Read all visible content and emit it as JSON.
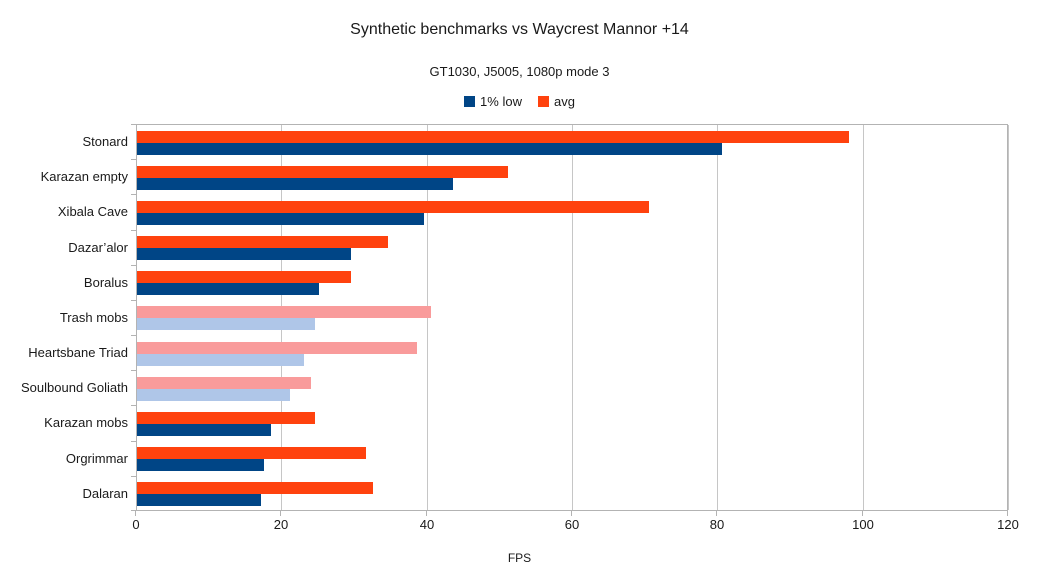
{
  "chart_data": {
    "type": "bar",
    "orientation": "horizontal",
    "title": "Synthetic benchmarks vs Waycrest Mannor +14",
    "subtitle": "GT1030, J5005, 1080p mode 3",
    "xlabel": "FPS",
    "xlim": [
      0,
      120
    ],
    "xticks": [
      0,
      20,
      40,
      60,
      80,
      100,
      120
    ],
    "grid": "vertical",
    "legend_position": "top-center",
    "legend": [
      {
        "name": "1% low",
        "color": "#004586"
      },
      {
        "name": "avg",
        "color": "#FF420E"
      }
    ],
    "categories": [
      "Stonard",
      "Karazan empty",
      "Xibala Cave",
      "Dazar’alor",
      "Boralus",
      "Trash mobs",
      "Heartsbane Triad",
      "Soulbound Goliath",
      "Karazan mobs",
      "Orgrimmar",
      "Dalaran"
    ],
    "series": [
      {
        "name": "1% low",
        "values": [
          80.5,
          43.5,
          39.5,
          29.5,
          25,
          24.5,
          23,
          21,
          18.5,
          17.5,
          17
        ]
      },
      {
        "name": "avg",
        "values": [
          98,
          51,
          70.5,
          34.5,
          29.5,
          40.5,
          38.5,
          24,
          24.5,
          31.5,
          32.5
        ]
      }
    ],
    "highlighted_categories": [
      "Trash mobs",
      "Heartsbane Triad",
      "Soulbound Goliath"
    ],
    "colors": {
      "low": "#004586",
      "avg": "#FF420E",
      "low_highlight": "#AFC6E8",
      "avg_highlight": "#F99B9B",
      "grid": "#C6C6C6",
      "axis": "#B3B3B3",
      "text": "#1A1A1A"
    }
  }
}
